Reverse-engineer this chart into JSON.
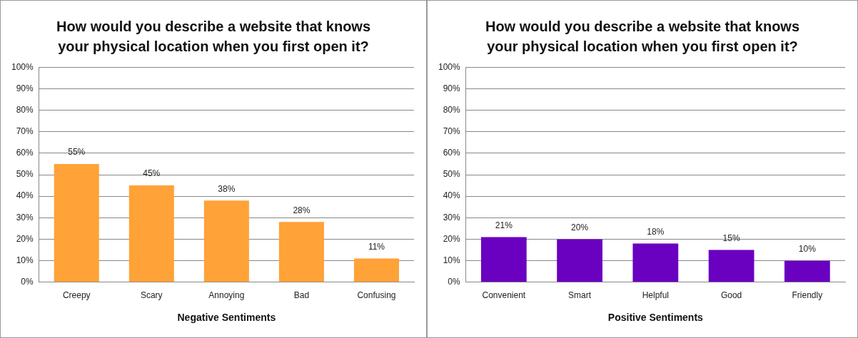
{
  "chart_data": [
    {
      "type": "bar",
      "title": "How would you describe a website that knows your physical location when you first open it?",
      "xlabel": "Negative Sentiments",
      "categories": [
        "Creepy",
        "Scary",
        "Annoying",
        "Bad",
        "Confusing"
      ],
      "values": [
        55,
        45,
        38,
        28,
        11
      ],
      "value_labels": [
        "55%",
        "45%",
        "38%",
        "28%",
        "11%"
      ],
      "color": "#ffa238",
      "ylim": [
        0,
        100
      ],
      "yticks": [
        {
          "value": 0,
          "label": "0%"
        },
        {
          "value": 10,
          "label": "10%"
        },
        {
          "value": 20,
          "label": "20%"
        },
        {
          "value": 30,
          "label": "30%"
        },
        {
          "value": 40,
          "label": "40%"
        },
        {
          "value": 50,
          "label": "50%"
        },
        {
          "value": 60,
          "label": "60%"
        },
        {
          "value": 70,
          "label": "70%"
        },
        {
          "value": 80,
          "label": "80%"
        },
        {
          "value": 90,
          "label": "90%"
        },
        {
          "value": 100,
          "label": "100%"
        }
      ],
      "grid": "y",
      "legend": false
    },
    {
      "type": "bar",
      "title": "How would you describe a website that knows your physical location when you first open it?",
      "xlabel": "Positive Sentiments",
      "categories": [
        "Convenient",
        "Smart",
        "Helpful",
        "Good",
        "Friendly"
      ],
      "values": [
        21,
        20,
        18,
        15,
        10
      ],
      "value_labels": [
        "21%",
        "20%",
        "18%",
        "15%",
        "10%"
      ],
      "color": "#6a00c0",
      "ylim": [
        0,
        100
      ],
      "yticks": [
        {
          "value": 0,
          "label": "0%"
        },
        {
          "value": 10,
          "label": "10%"
        },
        {
          "value": 20,
          "label": "20%"
        },
        {
          "value": 30,
          "label": "30%"
        },
        {
          "value": 40,
          "label": "40%"
        },
        {
          "value": 50,
          "label": "50%"
        },
        {
          "value": 60,
          "label": "60%"
        },
        {
          "value": 70,
          "label": "70%"
        },
        {
          "value": 80,
          "label": "80%"
        },
        {
          "value": 90,
          "label": "90%"
        },
        {
          "value": 100,
          "label": "100%"
        }
      ],
      "grid": "y",
      "legend": false
    }
  ]
}
